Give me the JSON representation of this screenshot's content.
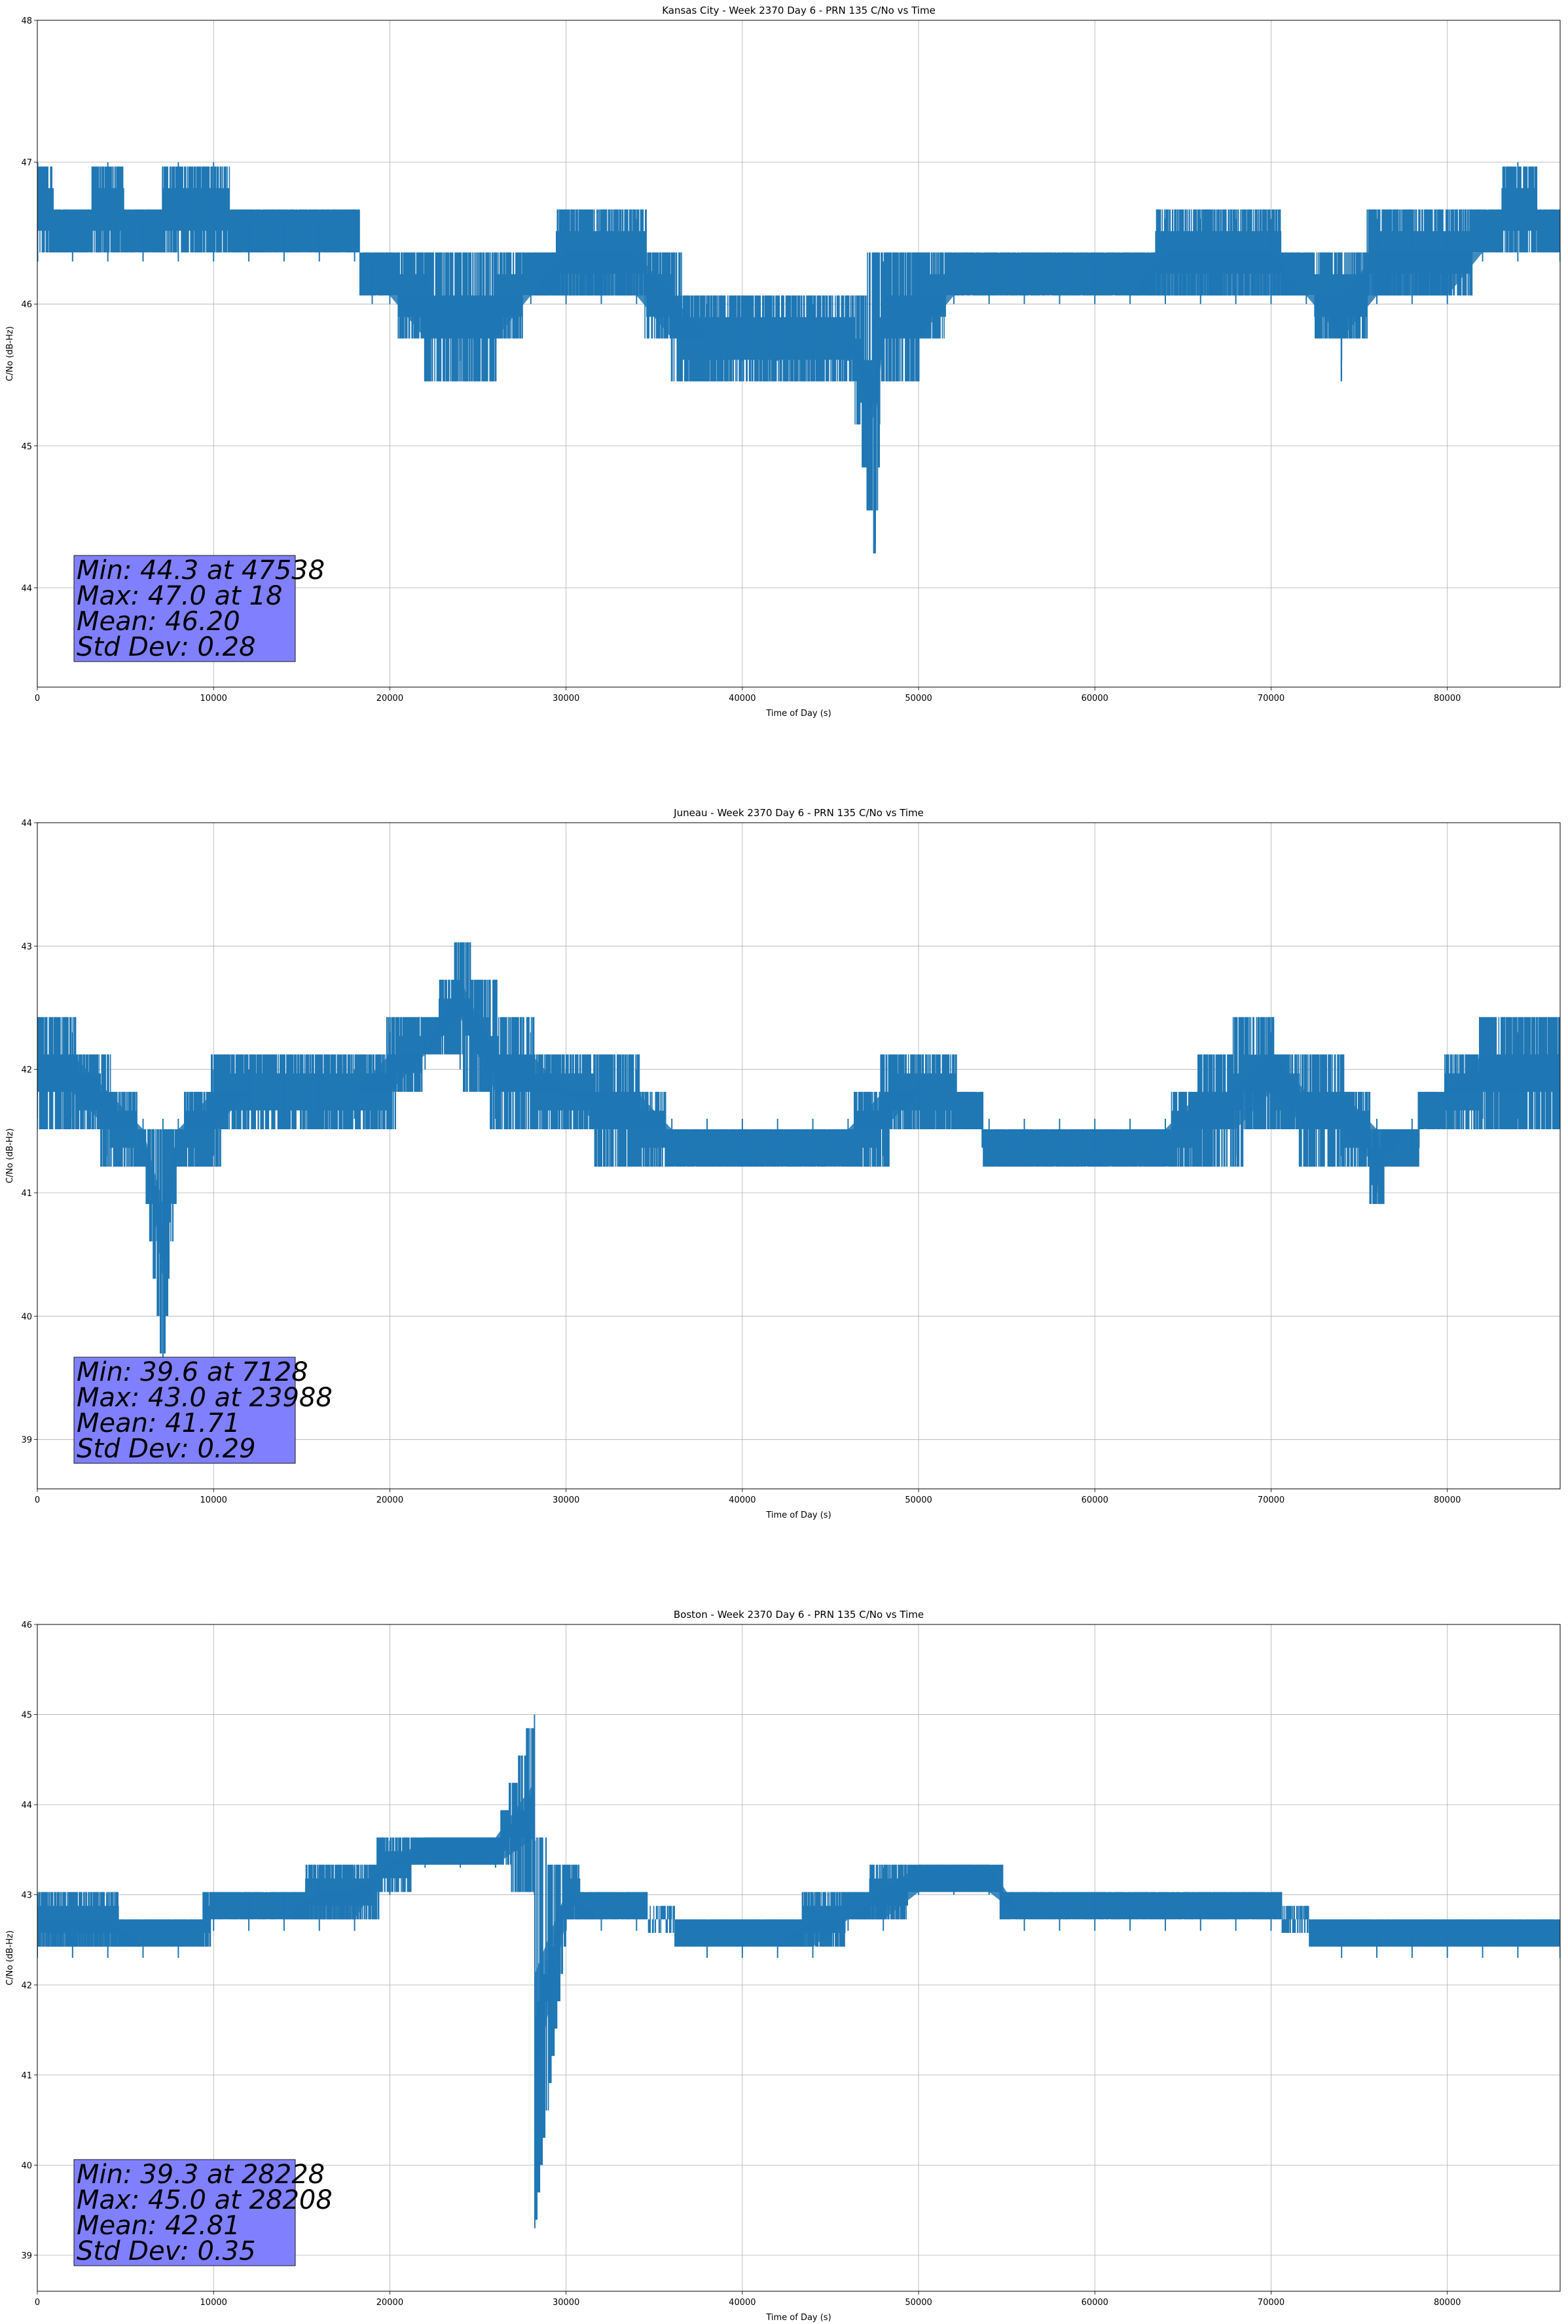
{
  "style": {
    "line_color": "#1f77b4",
    "stats_box_color": "#8080ff",
    "grid_color": "#b0b0b0"
  },
  "chart_data": [
    {
      "type": "line",
      "title": "Kansas City - Week 2370 Day 6 - PRN 135 C/No vs Time",
      "xlabel": "Time of Day (s)",
      "ylabel": "C/No (dB-Hz)",
      "xlim": [
        0,
        86400
      ],
      "ylim": [
        43.3,
        48
      ],
      "xticks": [
        0,
        10000,
        20000,
        30000,
        40000,
        50000,
        60000,
        70000,
        80000
      ],
      "yticks": [
        44,
        45,
        46,
        47,
        48
      ],
      "grid": true,
      "x": [
        0,
        18,
        2000,
        4000,
        6000,
        8000,
        10000,
        12000,
        14000,
        16000,
        18000,
        19000,
        20000,
        22000,
        24000,
        26000,
        28000,
        30000,
        32000,
        34000,
        36000,
        38000,
        40000,
        42000,
        44000,
        46000,
        47538,
        48000,
        50000,
        52000,
        54000,
        56000,
        58000,
        60000,
        62000,
        64000,
        66000,
        68000,
        70000,
        72000,
        74000,
        76000,
        78000,
        80000,
        82000,
        84000,
        86400
      ],
      "band_low": [
        46.3,
        46.3,
        46.3,
        46.3,
        46.3,
        46.3,
        46.3,
        46.3,
        46.3,
        46.3,
        46.3,
        46.0,
        46.0,
        45.6,
        45.6,
        45.6,
        46.0,
        46.0,
        46.0,
        46.0,
        45.6,
        45.6,
        45.6,
        45.6,
        45.6,
        45.6,
        44.3,
        45.6,
        45.6,
        46.0,
        46.0,
        46.0,
        46.0,
        46.0,
        46.0,
        46.0,
        46.0,
        46.0,
        46.0,
        46.0,
        45.6,
        46.0,
        46.0,
        46.0,
        46.3,
        46.3,
        46.3
      ],
      "band_high": [
        46.6,
        47.0,
        46.6,
        47.0,
        46.6,
        47.0,
        47.0,
        46.6,
        46.6,
        46.6,
        46.6,
        46.3,
        46.3,
        46.3,
        46.3,
        46.3,
        46.3,
        46.6,
        46.6,
        46.6,
        46.3,
        46.0,
        46.0,
        46.0,
        46.0,
        46.0,
        46.3,
        46.3,
        46.3,
        46.3,
        46.3,
        46.3,
        46.3,
        46.3,
        46.3,
        46.6,
        46.6,
        46.6,
        46.6,
        46.3,
        46.3,
        46.6,
        46.6,
        46.6,
        46.6,
        47.0,
        46.6
      ],
      "stats": {
        "line1": "Min: 44.3 at 47538",
        "line2": "Max: 47.0 at 18",
        "line3": "Mean: 46.20",
        "line4": "Std Dev: 0.28"
      }
    },
    {
      "type": "line",
      "title": "Juneau - Week 2370 Day 6 - PRN 135 C/No vs Time",
      "xlabel": "Time of Day (s)",
      "ylabel": "C/No (dB-Hz)",
      "xlim": [
        0,
        86400
      ],
      "ylim": [
        38.6,
        44
      ],
      "xticks": [
        0,
        10000,
        20000,
        30000,
        40000,
        50000,
        60000,
        70000,
        80000
      ],
      "yticks": [
        39,
        40,
        41,
        42,
        43,
        44
      ],
      "grid": true,
      "x": [
        0,
        2000,
        4000,
        6000,
        7128,
        8000,
        10000,
        12000,
        14000,
        16000,
        18000,
        20000,
        22000,
        23988,
        26000,
        28000,
        30000,
        32000,
        34000,
        36000,
        38000,
        40000,
        42000,
        44000,
        46000,
        48000,
        50000,
        52000,
        54000,
        56000,
        58000,
        60000,
        62000,
        64000,
        66000,
        68000,
        70000,
        72000,
        74000,
        76000,
        78000,
        80000,
        82000,
        84000,
        86400
      ],
      "band_low": [
        41.6,
        41.6,
        41.3,
        41.3,
        39.6,
        41.3,
        41.3,
        41.6,
        41.6,
        41.6,
        41.6,
        41.6,
        42.0,
        42.0,
        41.6,
        41.6,
        41.6,
        41.3,
        41.3,
        41.3,
        41.3,
        41.3,
        41.3,
        41.3,
        41.3,
        41.3,
        41.6,
        41.6,
        41.3,
        41.3,
        41.3,
        41.3,
        41.3,
        41.3,
        41.3,
        41.3,
        41.6,
        41.3,
        41.3,
        41.0,
        41.3,
        41.6,
        41.6,
        41.6,
        41.6
      ],
      "band_high": [
        42.3,
        42.3,
        42.0,
        41.6,
        41.6,
        41.6,
        42.0,
        42.0,
        42.0,
        42.0,
        42.0,
        42.3,
        42.3,
        43.0,
        42.6,
        42.3,
        42.0,
        42.0,
        42.0,
        41.6,
        41.6,
        41.6,
        41.6,
        41.6,
        41.6,
        42.0,
        42.0,
        42.0,
        41.6,
        41.6,
        41.6,
        41.6,
        41.6,
        41.6,
        42.0,
        42.3,
        42.3,
        42.0,
        42.0,
        41.6,
        41.6,
        42.0,
        42.3,
        42.3,
        42.3
      ],
      "stats": {
        "line1": "Min: 39.6 at 7128",
        "line2": "Max: 43.0 at 23988",
        "line3": "Mean: 41.71",
        "line4": "Std Dev: 0.29"
      }
    },
    {
      "type": "line",
      "title": "Boston - Week 2370 Day 6 - PRN 135 C/No vs Time",
      "xlabel": "Time of Day (s)",
      "ylabel": "C/No (dB-Hz)",
      "xlim": [
        0,
        86400
      ],
      "ylim": [
        38.6,
        46
      ],
      "xticks": [
        0,
        10000,
        20000,
        30000,
        40000,
        50000,
        60000,
        70000,
        80000
      ],
      "yticks": [
        39,
        40,
        41,
        42,
        43,
        44,
        45,
        46
      ],
      "grid": true,
      "x": [
        0,
        2000,
        4000,
        6000,
        8000,
        10000,
        12000,
        14000,
        16000,
        18000,
        20000,
        22000,
        24000,
        26000,
        28208,
        28228,
        30000,
        32000,
        34000,
        36000,
        38000,
        40000,
        42000,
        44000,
        46000,
        48000,
        50000,
        52000,
        54000,
        56000,
        58000,
        60000,
        62000,
        64000,
        66000,
        68000,
        70000,
        72000,
        74000,
        76000,
        78000,
        80000,
        82000,
        84000,
        86400
      ],
      "band_low": [
        42.3,
        42.3,
        42.3,
        42.3,
        42.3,
        42.6,
        42.6,
        42.6,
        42.6,
        42.6,
        43.0,
        43.3,
        43.3,
        43.3,
        43.0,
        39.3,
        42.6,
        42.6,
        42.6,
        42.6,
        42.3,
        42.3,
        42.3,
        42.3,
        42.6,
        42.6,
        43.0,
        43.0,
        43.0,
        42.6,
        42.6,
        42.6,
        42.6,
        42.6,
        42.6,
        42.6,
        42.6,
        42.6,
        42.3,
        42.3,
        42.3,
        42.3,
        42.3,
        42.3,
        42.3
      ],
      "band_high": [
        43.0,
        43.0,
        43.0,
        42.6,
        42.6,
        43.0,
        43.0,
        43.0,
        43.3,
        43.3,
        43.6,
        43.6,
        43.6,
        43.6,
        45.0,
        43.6,
        43.3,
        43.0,
        43.0,
        42.6,
        42.6,
        42.6,
        42.6,
        43.0,
        43.0,
        43.3,
        43.3,
        43.3,
        43.3,
        43.0,
        43.0,
        43.0,
        43.0,
        43.0,
        43.0,
        43.0,
        43.0,
        42.6,
        42.6,
        42.6,
        42.6,
        42.6,
        42.6,
        42.6,
        42.6
      ],
      "stats": {
        "line1": "Min: 39.3 at 28228",
        "line2": "Max: 45.0 at 28208",
        "line3": "Mean: 42.81",
        "line4": "Std Dev: 0.35"
      }
    }
  ]
}
